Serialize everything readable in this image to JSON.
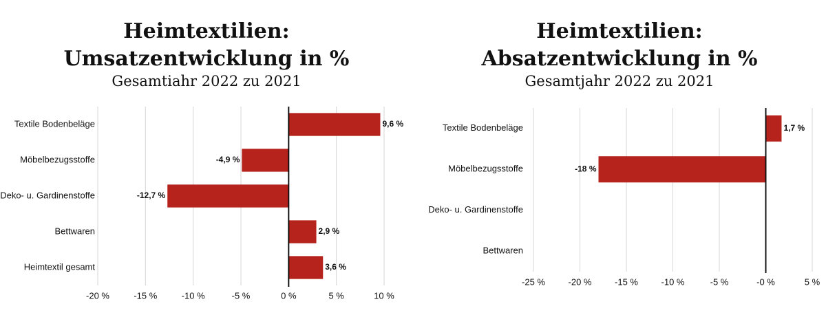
{
  "chart_data": [
    {
      "type": "bar",
      "orientation": "horizontal",
      "title": "Heimtextilien:\nUmsatzentwicklung in %",
      "subtitle": "Gesamtiahr 2022 zu 2021",
      "categories": [
        "Textile Bodenbeläge",
        "Möbelbezugsstoffe",
        "Deko- u. Gardinenstoffe",
        "Bettwaren",
        "Heimtextil gesamt"
      ],
      "values": [
        9.6,
        -4.9,
        -12.7,
        2.9,
        3.6
      ],
      "value_labels": [
        "9,6 %",
        "-4,9 %",
        "-12,7 %",
        "2,9 %",
        "3,6 %"
      ],
      "color": "#b5231c",
      "xlim": [
        -20,
        10
      ],
      "xticks": [
        {
          "value": -20,
          "label": "-20 %"
        },
        {
          "value": -15,
          "label": "-15 %"
        },
        {
          "value": -10,
          "label": "-10 %"
        },
        {
          "value": -5,
          "label": "-5 %"
        },
        {
          "value": 0,
          "label": "0 %"
        },
        {
          "value": 5,
          "label": "5 %"
        },
        {
          "value": 10,
          "label": "10 %"
        }
      ],
      "grid": true
    },
    {
      "type": "bar",
      "orientation": "horizontal",
      "title": "Heimtextilien:\nAbsatzentwicklung in %",
      "subtitle": "Gesamtjahr 2022 zu 2021",
      "categories": [
        "Textile Bodenbeläge",
        "Möbelbezugsstoffe",
        "Deko- u. Gardinenstoffe",
        "Bettwaren"
      ],
      "values": [
        1.7,
        -18,
        null,
        null
      ],
      "value_labels": [
        "1,7 %",
        "-18 %",
        null,
        null
      ],
      "color": "#b5231c",
      "xlim": [
        -25,
        5
      ],
      "xticks": [
        {
          "value": -25,
          "label": "-25 %"
        },
        {
          "value": -20,
          "label": "-20 %"
        },
        {
          "value": -15,
          "label": "-15 %"
        },
        {
          "value": -10,
          "label": "-10 %"
        },
        {
          "value": -5,
          "label": "-5 %"
        },
        {
          "value": 0,
          "label": "-0 %"
        },
        {
          "value": 5,
          "label": "5 %"
        }
      ],
      "grid": true
    }
  ]
}
